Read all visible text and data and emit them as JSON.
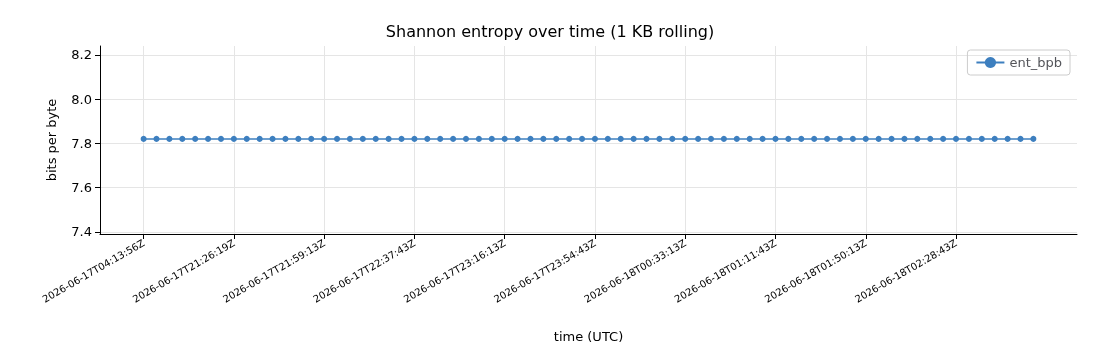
{
  "chart_data": {
    "type": "line",
    "title": "Shannon entropy over time (1 KB rolling)",
    "xlabel": "time (UTC)",
    "ylabel": "bits per byte",
    "categories": [
      "2026-06-17T04:13:56Z",
      null,
      null,
      null,
      null,
      null,
      null,
      "2026-06-17T21:26:19Z",
      null,
      null,
      null,
      null,
      null,
      null,
      "2026-06-17T21:59:13Z",
      null,
      null,
      null,
      null,
      null,
      null,
      "2026-06-17T22:37:43Z",
      null,
      null,
      null,
      null,
      null,
      null,
      "2026-06-17T23:16:13Z",
      null,
      null,
      null,
      null,
      null,
      null,
      "2026-06-17T23:54:43Z",
      null,
      null,
      null,
      null,
      null,
      null,
      "2026-06-18T00:33:13Z",
      null,
      null,
      null,
      null,
      null,
      null,
      "2026-06-18T01:11:43Z",
      null,
      null,
      null,
      null,
      null,
      null,
      "2026-06-18T01:50:13Z",
      null,
      null,
      null,
      null,
      null,
      null,
      "2026-06-18T02:28:43Z",
      null,
      null,
      null,
      null,
      null,
      null
    ],
    "series": [
      {
        "name": "ent_bpb",
        "color": "#3d7fbf",
        "values": [
          7.82,
          7.82,
          7.82,
          7.82,
          7.82,
          7.82,
          7.82,
          7.82,
          7.82,
          7.82,
          7.82,
          7.82,
          7.82,
          7.82,
          7.82,
          7.82,
          7.82,
          7.82,
          7.82,
          7.82,
          7.82,
          7.82,
          7.82,
          7.82,
          7.82,
          7.82,
          7.82,
          7.82,
          7.82,
          7.82,
          7.82,
          7.82,
          7.82,
          7.82,
          7.82,
          7.82,
          7.82,
          7.82,
          7.82,
          7.82,
          7.82,
          7.82,
          7.82,
          7.82,
          7.82,
          7.82,
          7.82,
          7.82,
          7.82,
          7.82,
          7.82,
          7.82,
          7.82,
          7.82,
          7.82,
          7.82,
          7.82,
          7.82,
          7.82,
          7.82,
          7.82,
          7.82,
          7.82,
          7.82,
          7.82,
          7.82,
          7.82,
          7.82,
          7.82,
          7.82
        ]
      }
    ],
    "ylim": [
      7.39,
      8.24
    ],
    "yticks": [
      7.4,
      7.6,
      7.8,
      {
        "value": 8,
        "label": "8.0"
      },
      8.2
    ],
    "grid": true,
    "legend": "top right",
    "marker": "circle",
    "line_style": "solid"
  }
}
